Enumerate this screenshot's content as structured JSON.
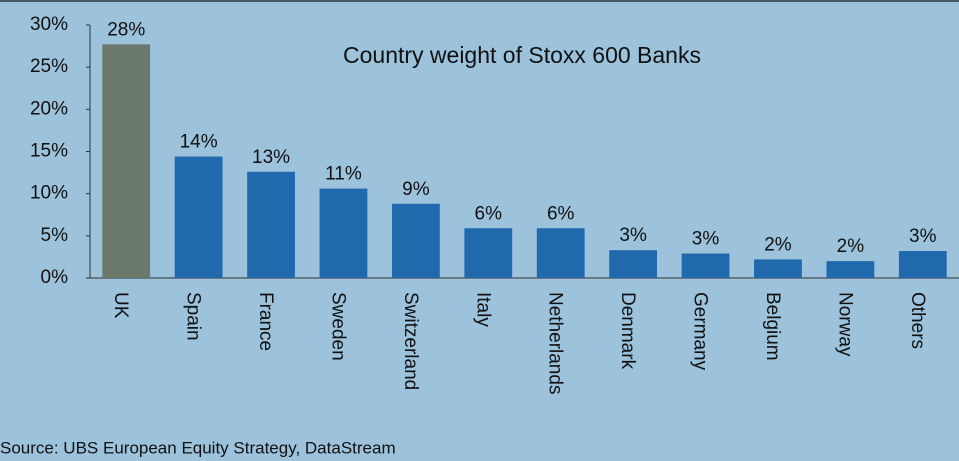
{
  "chart_data": {
    "type": "bar",
    "title": "Country weight of Stoxx 600 Banks",
    "categories": [
      "UK",
      "Spain",
      "France",
      "Sweden",
      "Switzerland",
      "Italy",
      "Netherlands",
      "Denmark",
      "Germany",
      "Belgium",
      "Norway",
      "Others"
    ],
    "values": [
      27.7,
      14.4,
      12.6,
      10.6,
      8.8,
      5.9,
      5.9,
      3.3,
      2.9,
      2.2,
      2.0,
      3.2
    ],
    "value_labels": [
      "28%",
      "14%",
      "13%",
      "11%",
      "9%",
      "6%",
      "6%",
      "3%",
      "3%",
      "2%",
      "2%",
      "3%"
    ],
    "colors": [
      "#6b786c",
      "#2069ad",
      "#2069ad",
      "#2069ad",
      "#2069ad",
      "#2069ad",
      "#2069ad",
      "#2069ad",
      "#2069ad",
      "#2069ad",
      "#2069ad",
      "#2069ad"
    ],
    "ylim": [
      0,
      30
    ],
    "yticks": [
      {
        "value": 0,
        "label": "0%"
      },
      {
        "value": 5,
        "label": "5%"
      },
      {
        "value": 10,
        "label": "10%"
      },
      {
        "value": 15,
        "label": "15%"
      },
      {
        "value": 20,
        "label": "20%"
      },
      {
        "value": 25,
        "label": "25%"
      },
      {
        "value": 30,
        "label": "30%"
      }
    ],
    "grid": false,
    "source": "Source: UBS European Equity Strategy, DataStream"
  }
}
